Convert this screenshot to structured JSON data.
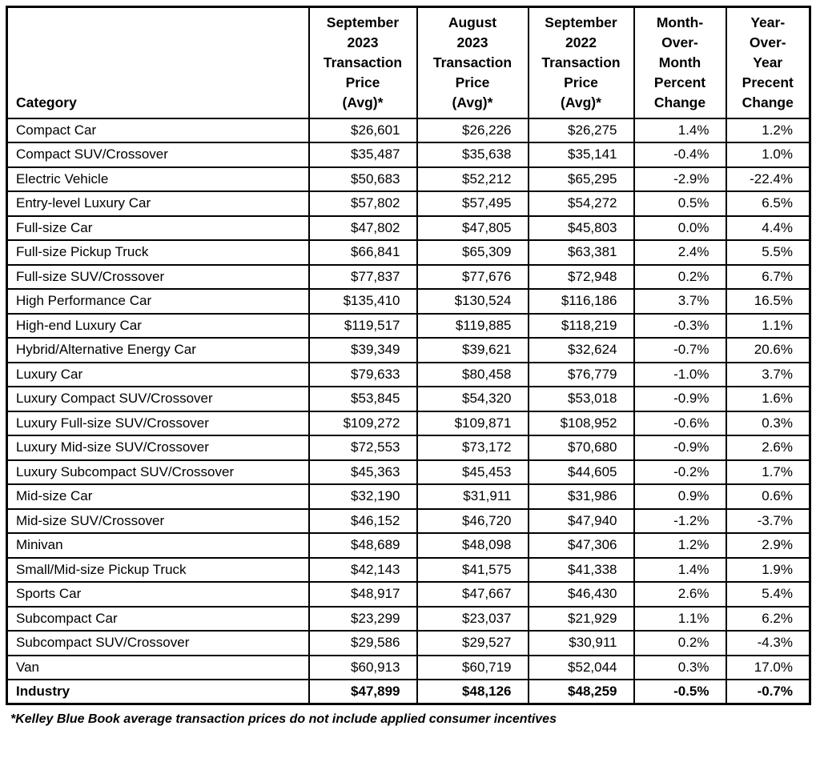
{
  "table": {
    "columns": [
      {
        "id": "category",
        "label": "Category"
      },
      {
        "id": "sep_2023_price",
        "label": "September\n2023\nTransaction\nPrice\n(Avg)*"
      },
      {
        "id": "aug_2023_price",
        "label": "August\n2023\nTransaction\nPrice\n(Avg)*"
      },
      {
        "id": "sep_2022_price",
        "label": "September\n2022\nTransaction\nPrice\n(Avg)*"
      },
      {
        "id": "mom_change",
        "label": "Month-\nOver-\nMonth\nPercent\nChange"
      },
      {
        "id": "yoy_change",
        "label": "Year-\nOver-\nYear\nPrecent\nChange"
      }
    ],
    "rows": [
      {
        "category": "Compact Car",
        "sep_2023": "$26,601",
        "aug_2023": "$26,226",
        "sep_2022": "$26,275",
        "mom": "1.4%",
        "yoy": "1.2%",
        "bold": false
      },
      {
        "category": "Compact SUV/Crossover",
        "sep_2023": "$35,487",
        "aug_2023": "$35,638",
        "sep_2022": "$35,141",
        "mom": "-0.4%",
        "yoy": "1.0%",
        "bold": false
      },
      {
        "category": "Electric Vehicle",
        "sep_2023": "$50,683",
        "aug_2023": "$52,212",
        "sep_2022": "$65,295",
        "mom": "-2.9%",
        "yoy": "-22.4%",
        "bold": false
      },
      {
        "category": "Entry-level Luxury Car",
        "sep_2023": "$57,802",
        "aug_2023": "$57,495",
        "sep_2022": "$54,272",
        "mom": "0.5%",
        "yoy": "6.5%",
        "bold": false
      },
      {
        "category": "Full-size Car",
        "sep_2023": "$47,802",
        "aug_2023": "$47,805",
        "sep_2022": "$45,803",
        "mom": "0.0%",
        "yoy": "4.4%",
        "bold": false
      },
      {
        "category": "Full-size Pickup Truck",
        "sep_2023": "$66,841",
        "aug_2023": "$65,309",
        "sep_2022": "$63,381",
        "mom": "2.4%",
        "yoy": "5.5%",
        "bold": false
      },
      {
        "category": "Full-size SUV/Crossover",
        "sep_2023": "$77,837",
        "aug_2023": "$77,676",
        "sep_2022": "$72,948",
        "mom": "0.2%",
        "yoy": "6.7%",
        "bold": false
      },
      {
        "category": "High Performance Car",
        "sep_2023": "$135,410",
        "aug_2023": "$130,524",
        "sep_2022": "$116,186",
        "mom": "3.7%",
        "yoy": "16.5%",
        "bold": false
      },
      {
        "category": "High-end Luxury Car",
        "sep_2023": "$119,517",
        "aug_2023": "$119,885",
        "sep_2022": "$118,219",
        "mom": "-0.3%",
        "yoy": "1.1%",
        "bold": false
      },
      {
        "category": "Hybrid/Alternative Energy Car",
        "sep_2023": "$39,349",
        "aug_2023": "$39,621",
        "sep_2022": "$32,624",
        "mom": "-0.7%",
        "yoy": "20.6%",
        "bold": false
      },
      {
        "category": "Luxury Car",
        "sep_2023": "$79,633",
        "aug_2023": "$80,458",
        "sep_2022": "$76,779",
        "mom": "-1.0%",
        "yoy": "3.7%",
        "bold": false
      },
      {
        "category": "Luxury Compact SUV/Crossover",
        "sep_2023": "$53,845",
        "aug_2023": "$54,320",
        "sep_2022": "$53,018",
        "mom": "-0.9%",
        "yoy": "1.6%",
        "bold": false
      },
      {
        "category": "Luxury Full-size SUV/Crossover",
        "sep_2023": "$109,272",
        "aug_2023": "$109,871",
        "sep_2022": "$108,952",
        "mom": "-0.6%",
        "yoy": "0.3%",
        "bold": false
      },
      {
        "category": "Luxury Mid-size SUV/Crossover",
        "sep_2023": "$72,553",
        "aug_2023": "$73,172",
        "sep_2022": "$70,680",
        "mom": "-0.9%",
        "yoy": "2.6%",
        "bold": false
      },
      {
        "category": "Luxury Subcompact SUV/Crossover",
        "sep_2023": "$45,363",
        "aug_2023": "$45,453",
        "sep_2022": "$44,605",
        "mom": "-0.2%",
        "yoy": "1.7%",
        "bold": false
      },
      {
        "category": "Mid-size Car",
        "sep_2023": "$32,190",
        "aug_2023": "$31,911",
        "sep_2022": "$31,986",
        "mom": "0.9%",
        "yoy": "0.6%",
        "bold": false
      },
      {
        "category": "Mid-size SUV/Crossover",
        "sep_2023": "$46,152",
        "aug_2023": "$46,720",
        "sep_2022": "$47,940",
        "mom": "-1.2%",
        "yoy": "-3.7%",
        "bold": false
      },
      {
        "category": "Minivan",
        "sep_2023": "$48,689",
        "aug_2023": "$48,098",
        "sep_2022": "$47,306",
        "mom": "1.2%",
        "yoy": "2.9%",
        "bold": false
      },
      {
        "category": "Small/Mid-size Pickup Truck",
        "sep_2023": "$42,143",
        "aug_2023": "$41,575",
        "sep_2022": "$41,338",
        "mom": "1.4%",
        "yoy": "1.9%",
        "bold": false
      },
      {
        "category": "Sports Car",
        "sep_2023": "$48,917",
        "aug_2023": "$47,667",
        "sep_2022": "$46,430",
        "mom": "2.6%",
        "yoy": "5.4%",
        "bold": false
      },
      {
        "category": "Subcompact Car",
        "sep_2023": "$23,299",
        "aug_2023": "$23,037",
        "sep_2022": "$21,929",
        "mom": "1.1%",
        "yoy": "6.2%",
        "bold": false
      },
      {
        "category": "Subcompact SUV/Crossover",
        "sep_2023": "$29,586",
        "aug_2023": "$29,527",
        "sep_2022": "$30,911",
        "mom": "0.2%",
        "yoy": "-4.3%",
        "bold": false
      },
      {
        "category": "Van",
        "sep_2023": "$60,913",
        "aug_2023": "$60,719",
        "sep_2022": "$52,044",
        "mom": "0.3%",
        "yoy": "17.0%",
        "bold": false
      },
      {
        "category": "Industry",
        "sep_2023": "$47,899",
        "aug_2023": "$48,126",
        "sep_2022": "$48,259",
        "mom": "-0.5%",
        "yoy": "-0.7%",
        "bold": true
      }
    ],
    "footnote": "*Kelley Blue Book average transaction prices do not include applied consumer incentives"
  }
}
